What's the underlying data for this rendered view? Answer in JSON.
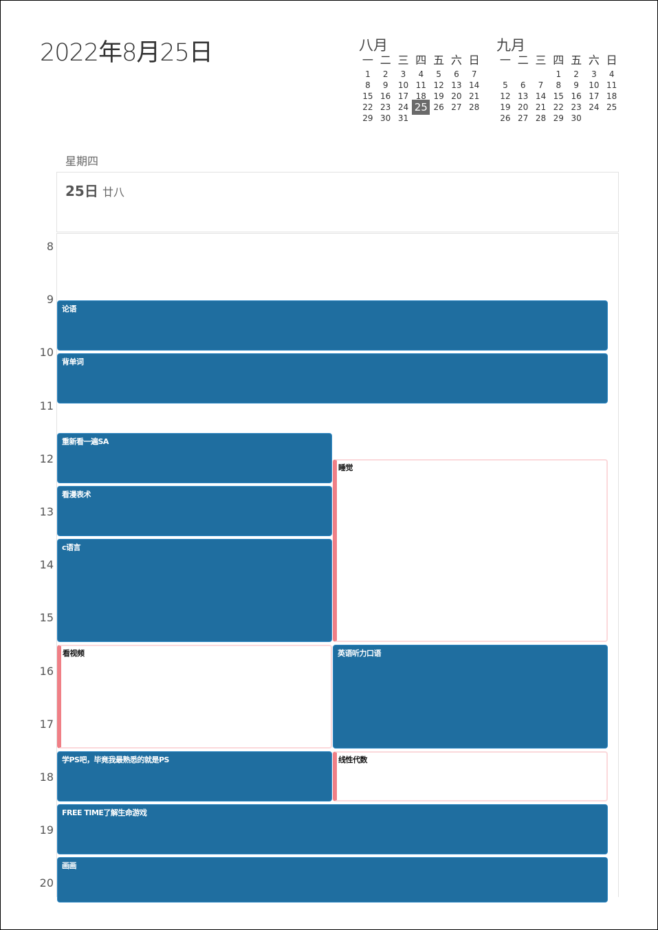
{
  "header": {
    "date_title": "2022年8月25日"
  },
  "mini_calendars": [
    {
      "month": "八月",
      "weekdays": [
        "一",
        "二",
        "三",
        "四",
        "五",
        "六",
        "日"
      ],
      "weeks": [
        [
          "1",
          "2",
          "3",
          "4",
          "5",
          "6",
          "7"
        ],
        [
          "8",
          "9",
          "10",
          "11",
          "12",
          "13",
          "14"
        ],
        [
          "15",
          "16",
          "17",
          "18",
          "19",
          "20",
          "21"
        ],
        [
          "22",
          "23",
          "24",
          "25",
          "26",
          "27",
          "28"
        ],
        [
          "29",
          "30",
          "31",
          "",
          "",
          "",
          ""
        ]
      ],
      "today": "25"
    },
    {
      "month": "九月",
      "weekdays": [
        "一",
        "二",
        "三",
        "四",
        "五",
        "六",
        "日"
      ],
      "weeks": [
        [
          "",
          "",
          "",
          "1",
          "2",
          "3",
          "4"
        ],
        [
          "5",
          "6",
          "7",
          "8",
          "9",
          "10",
          "11"
        ],
        [
          "12",
          "13",
          "14",
          "15",
          "16",
          "17",
          "18"
        ],
        [
          "19",
          "20",
          "21",
          "22",
          "23",
          "24",
          "25"
        ],
        [
          "26",
          "27",
          "28",
          "29",
          "30",
          "",
          ""
        ]
      ],
      "today": ""
    }
  ],
  "day_view": {
    "weekday": "星期四",
    "day_number": "25日",
    "lunar": "廿八",
    "hours": [
      "8",
      "9",
      "10",
      "11",
      "12",
      "13",
      "14",
      "15",
      "16",
      "17",
      "18",
      "19",
      "20"
    ]
  },
  "events": [
    {
      "title": "论语",
      "start": 9.25,
      "end": 10.2,
      "col": 0,
      "span": 2,
      "style": "blue"
    },
    {
      "title": "背单词",
      "start": 10.25,
      "end": 11.2,
      "col": 0,
      "span": 2,
      "style": "blue"
    },
    {
      "title": "重新看一遍SA",
      "start": 11.75,
      "end": 12.7,
      "col": 0,
      "span": 1,
      "style": "blue"
    },
    {
      "title": "睡觉",
      "start": 12.25,
      "end": 15.7,
      "col": 1,
      "span": 1,
      "style": "pink"
    },
    {
      "title": "看漫表术",
      "start": 12.75,
      "end": 13.7,
      "col": 0,
      "span": 1,
      "style": "blue"
    },
    {
      "title": "c语言",
      "start": 13.75,
      "end": 15.7,
      "col": 0,
      "span": 1,
      "style": "blue"
    },
    {
      "title": "看视频",
      "start": 15.75,
      "end": 17.7,
      "col": 0,
      "span": 1,
      "style": "pink"
    },
    {
      "title": "英语听力口语",
      "start": 15.75,
      "end": 17.7,
      "col": 1,
      "span": 1,
      "style": "blue"
    },
    {
      "title": "学PS吧，毕竟我最熟悉的就是PS",
      "start": 17.75,
      "end": 18.7,
      "col": 0,
      "span": 1,
      "style": "blue"
    },
    {
      "title": "线性代数",
      "start": 17.75,
      "end": 18.7,
      "col": 1,
      "span": 1,
      "style": "pink"
    },
    {
      "title": "FREE TIME了解生命游戏",
      "start": 18.75,
      "end": 19.7,
      "col": 0,
      "span": 2,
      "style": "blue"
    },
    {
      "title": "画画",
      "start": 19.75,
      "end": 20.6,
      "col": 0,
      "span": 2,
      "style": "blue"
    }
  ]
}
